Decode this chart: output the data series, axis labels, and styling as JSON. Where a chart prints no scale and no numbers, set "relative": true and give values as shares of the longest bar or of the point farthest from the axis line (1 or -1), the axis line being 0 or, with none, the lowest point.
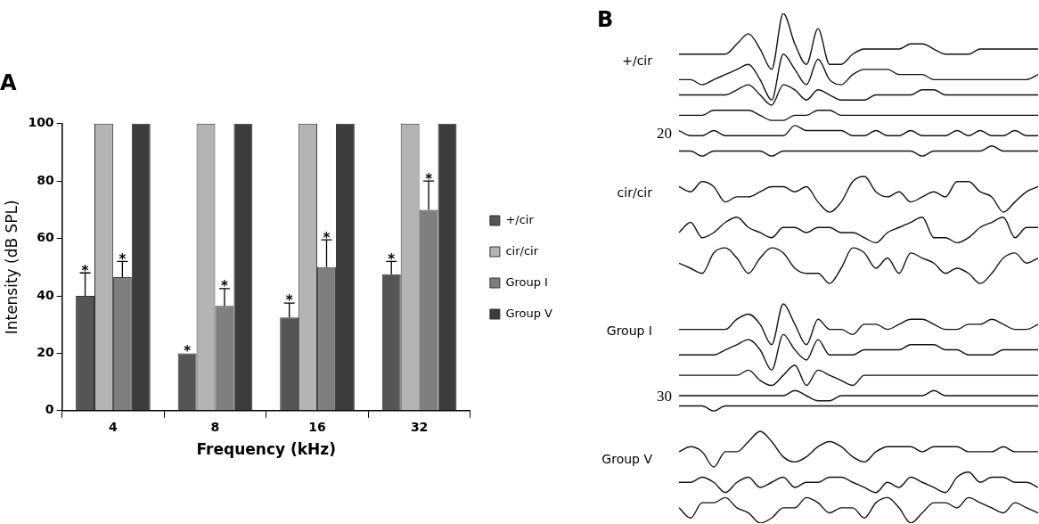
{
  "chart_data": [
    {
      "type": "bar",
      "title": "A",
      "xlabel": "Frequency (kHz)",
      "ylabel": "Intensity (dB SPL)",
      "categories": [
        "4",
        "8",
        "16",
        "32"
      ],
      "series": [
        {
          "name": "+/cir",
          "color": "#555555",
          "values": [
            40,
            20,
            32.5,
            47.5
          ],
          "errors": [
            [
              40,
              48
            ],
            null,
            [
              32.5,
              37.5
            ],
            [
              47.5,
              52
            ]
          ],
          "value_labels": [
            "*",
            "*",
            "*",
            "*"
          ]
        },
        {
          "name": "cir/cir",
          "color": "#b4b4b4",
          "values": [
            100,
            100,
            100,
            100
          ]
        },
        {
          "name": "Group I",
          "color": "#7f7f7f",
          "values": [
            46.5,
            36.5,
            50,
            70
          ],
          "errors": [
            [
              46.5,
              52
            ],
            [
              36.5,
              42.5
            ],
            [
              50,
              59.5
            ],
            [
              70,
              80
            ]
          ],
          "value_labels": [
            "*",
            "*",
            "*",
            "*"
          ]
        },
        {
          "name": "Group V",
          "color": "#3c3c3c",
          "values": [
            100,
            100,
            100,
            100
          ]
        }
      ],
      "ylim": [
        0,
        100
      ],
      "yticks": [
        0,
        20,
        40,
        60,
        80,
        100
      ],
      "grid": false,
      "legend": "right"
    },
    {
      "type": "line",
      "title": "B",
      "relative": true,
      "annotations": [
        "+/cir",
        "20",
        "cir/cir",
        "Group I",
        "30",
        "Group V"
      ],
      "categories": [
        null,
        null,
        null,
        null,
        null,
        null,
        null,
        null,
        null,
        null,
        null,
        null,
        null,
        null,
        null,
        null,
        null,
        null,
        null,
        null,
        null,
        null,
        null,
        null,
        null,
        null,
        null,
        null,
        null,
        null,
        null,
        null
      ],
      "series": [
        {
          "color": "#111111",
          "values": [
            0.92,
            0.92,
            0.92,
            0.92,
            0.92,
            0.94,
            0.96,
            0.93,
            0.89,
            1.0,
            0.94,
            0.9,
            0.97,
            0.9,
            0.9,
            0.92,
            0.93,
            0.93,
            0.93,
            0.93,
            0.94,
            0.94,
            0.93,
            0.92,
            0.92,
            0.92,
            0.93,
            0.93,
            0.93,
            0.93,
            0.93,
            0.93
          ]
        },
        {
          "color": "#111111",
          "values": [
            0.87,
            0.87,
            0.86,
            0.87,
            0.88,
            0.89,
            0.9,
            0.87,
            0.83,
            0.92,
            0.89,
            0.86,
            0.91,
            0.87,
            0.86,
            0.88,
            0.89,
            0.89,
            0.89,
            0.88,
            0.88,
            0.88,
            0.87,
            0.87,
            0.87,
            0.87,
            0.87,
            0.87,
            0.87,
            0.87,
            0.87,
            0.88
          ]
        },
        {
          "color": "#111111",
          "values": [
            0.84,
            0.84,
            0.84,
            0.84,
            0.84,
            0.85,
            0.86,
            0.84,
            0.82,
            0.86,
            0.85,
            0.83,
            0.85,
            0.84,
            0.83,
            0.83,
            0.83,
            0.84,
            0.84,
            0.84,
            0.84,
            0.85,
            0.85,
            0.84,
            0.84,
            0.84,
            0.84,
            0.84,
            0.84,
            0.84,
            0.84,
            0.84
          ]
        },
        {
          "color": "#111111",
          "values": [
            0.8,
            0.8,
            0.8,
            0.81,
            0.81,
            0.81,
            0.81,
            0.8,
            0.79,
            0.79,
            0.8,
            0.8,
            0.81,
            0.81,
            0.8,
            0.8,
            0.8,
            0.8,
            0.8,
            0.8,
            0.8,
            0.8,
            0.8,
            0.8,
            0.8,
            0.8,
            0.8,
            0.8,
            0.8,
            0.8,
            0.8,
            0.8
          ]
        },
        {
          "color": "#111111",
          "values": [
            0.77,
            0.76,
            0.76,
            0.77,
            0.76,
            0.76,
            0.76,
            0.76,
            0.76,
            0.76,
            0.78,
            0.77,
            0.77,
            0.77,
            0.77,
            0.76,
            0.76,
            0.77,
            0.76,
            0.76,
            0.77,
            0.76,
            0.76,
            0.76,
            0.77,
            0.76,
            0.77,
            0.76,
            0.76,
            0.77,
            0.76,
            0.76
          ]
        },
        {
          "color": "#111111",
          "values": [
            0.73,
            0.73,
            0.72,
            0.73,
            0.73,
            0.73,
            0.73,
            0.73,
            0.72,
            0.73,
            0.73,
            0.73,
            0.73,
            0.73,
            0.73,
            0.73,
            0.73,
            0.73,
            0.73,
            0.73,
            0.73,
            0.72,
            0.73,
            0.73,
            0.73,
            0.73,
            0.73,
            0.74,
            0.73,
            0.73,
            0.73,
            0.73
          ]
        },
        {
          "color": "#111111",
          "values": [
            0.66,
            0.65,
            0.67,
            0.66,
            0.63,
            0.64,
            0.64,
            0.65,
            0.66,
            0.66,
            0.65,
            0.66,
            0.63,
            0.61,
            0.63,
            0.67,
            0.68,
            0.65,
            0.64,
            0.65,
            0.63,
            0.64,
            0.65,
            0.64,
            0.67,
            0.67,
            0.65,
            0.64,
            0.61,
            0.63,
            0.65,
            0.66
          ]
        },
        {
          "color": "#111111",
          "values": [
            0.57,
            0.59,
            0.56,
            0.57,
            0.59,
            0.6,
            0.58,
            0.57,
            0.56,
            0.58,
            0.58,
            0.57,
            0.58,
            0.58,
            0.57,
            0.57,
            0.56,
            0.55,
            0.57,
            0.58,
            0.59,
            0.6,
            0.56,
            0.56,
            0.55,
            0.56,
            0.58,
            0.59,
            0.6,
            0.56,
            0.58,
            0.58
          ]
        },
        {
          "color": "#111111",
          "values": [
            0.51,
            0.5,
            0.49,
            0.53,
            0.54,
            0.52,
            0.49,
            0.52,
            0.54,
            0.53,
            0.5,
            0.49,
            0.49,
            0.47,
            0.5,
            0.54,
            0.53,
            0.5,
            0.52,
            0.49,
            0.53,
            0.52,
            0.51,
            0.49,
            0.5,
            0.49,
            0.47,
            0.49,
            0.52,
            0.53,
            0.51,
            0.52
          ]
        },
        {
          "color": "#111111",
          "values": [
            0.38,
            0.38,
            0.38,
            0.38,
            0.38,
            0.4,
            0.41,
            0.39,
            0.35,
            0.43,
            0.39,
            0.35,
            0.4,
            0.38,
            0.38,
            0.37,
            0.39,
            0.39,
            0.38,
            0.39,
            0.4,
            0.4,
            0.39,
            0.38,
            0.38,
            0.39,
            0.39,
            0.4,
            0.39,
            0.38,
            0.38,
            0.39
          ]
        },
        {
          "color": "#111111",
          "values": [
            0.33,
            0.33,
            0.33,
            0.33,
            0.34,
            0.35,
            0.36,
            0.34,
            0.3,
            0.37,
            0.34,
            0.32,
            0.36,
            0.33,
            0.33,
            0.33,
            0.34,
            0.34,
            0.34,
            0.34,
            0.35,
            0.35,
            0.35,
            0.34,
            0.34,
            0.33,
            0.33,
            0.33,
            0.34,
            0.34,
            0.34,
            0.34
          ]
        },
        {
          "color": "#111111",
          "values": [
            0.29,
            0.29,
            0.29,
            0.29,
            0.29,
            0.29,
            0.3,
            0.28,
            0.27,
            0.29,
            0.31,
            0.27,
            0.3,
            0.29,
            0.28,
            0.27,
            0.29,
            0.29,
            0.29,
            0.29,
            0.29,
            0.29,
            0.29,
            0.29,
            0.29,
            0.29,
            0.29,
            0.29,
            0.29,
            0.29,
            0.29,
            0.29
          ]
        },
        {
          "color": "#111111",
          "values": [
            0.25,
            0.25,
            0.25,
            0.25,
            0.25,
            0.25,
            0.25,
            0.25,
            0.25,
            0.25,
            0.26,
            0.25,
            0.24,
            0.24,
            0.25,
            0.25,
            0.25,
            0.25,
            0.25,
            0.25,
            0.25,
            0.25,
            0.26,
            0.25,
            0.25,
            0.25,
            0.25,
            0.25,
            0.25,
            0.25,
            0.25,
            0.25
          ]
        },
        {
          "color": "#111111",
          "values": [
            0.23,
            0.23,
            0.23,
            0.22,
            0.23,
            0.23,
            0.23,
            0.23,
            0.23,
            0.23,
            0.23,
            0.23,
            0.23,
            0.23,
            0.23,
            0.23,
            0.23,
            0.23,
            0.23,
            0.23,
            0.23,
            0.23,
            0.23,
            0.23,
            0.23,
            0.23,
            0.23,
            0.23,
            0.23,
            0.23,
            0.23,
            0.23
          ]
        },
        {
          "color": "#111111",
          "values": [
            0.14,
            0.15,
            0.14,
            0.11,
            0.14,
            0.14,
            0.16,
            0.18,
            0.16,
            0.13,
            0.12,
            0.13,
            0.15,
            0.16,
            0.15,
            0.13,
            0.12,
            0.14,
            0.15,
            0.15,
            0.15,
            0.14,
            0.15,
            0.15,
            0.15,
            0.14,
            0.14,
            0.14,
            0.15,
            0.14,
            0.14,
            0.14
          ]
        },
        {
          "color": "#111111",
          "values": [
            0.08,
            0.08,
            0.09,
            0.08,
            0.06,
            0.08,
            0.09,
            0.07,
            0.08,
            0.09,
            0.07,
            0.08,
            0.08,
            0.09,
            0.09,
            0.08,
            0.07,
            0.06,
            0.08,
            0.07,
            0.09,
            0.08,
            0.07,
            0.06,
            0.09,
            0.1,
            0.08,
            0.09,
            0.09,
            0.08,
            0.08,
            0.07
          ]
        },
        {
          "color": "#111111",
          "values": [
            0.03,
            0.01,
            0.04,
            0.04,
            0.05,
            0.03,
            0.02,
            0.0,
            0.01,
            0.03,
            0.03,
            0.05,
            0.04,
            0.02,
            0.03,
            0.03,
            0.01,
            0.04,
            0.05,
            0.03,
            0.0,
            0.02,
            0.04,
            0.04,
            0.03,
            0.05,
            0.04,
            0.03,
            0.02,
            0.04,
            0.03,
            0.02
          ]
        }
      ]
    }
  ]
}
